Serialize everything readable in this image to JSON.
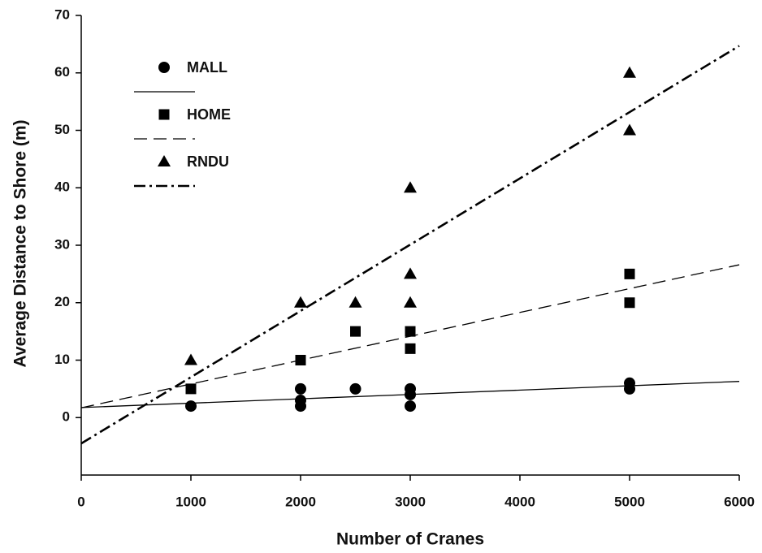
{
  "chart_data": {
    "type": "scatter",
    "x_label": "Number of Cranes",
    "y_label": "Average Distance to Shore (m)",
    "xlim": [
      0,
      6000
    ],
    "xticks": [
      0,
      1000,
      2000,
      3000,
      4000,
      5000,
      6000
    ],
    "ylim": [
      -10,
      70
    ],
    "yticks": [
      0,
      10,
      20,
      30,
      40,
      50,
      60,
      70
    ],
    "grid": false,
    "legend": "upper left",
    "series": [
      {
        "name": "MALL",
        "color": "#000000",
        "marker": "circle",
        "x": [
          1000,
          2000,
          2000,
          2000,
          2500,
          3000,
          3000,
          3000,
          5000,
          5000
        ],
        "values": [
          2,
          5,
          3,
          2,
          5,
          5,
          4,
          2,
          6,
          5
        ],
        "fit": {
          "x": [
            0,
            6000
          ],
          "values": [
            1.75,
            6.3
          ],
          "linestyle": "solid"
        }
      },
      {
        "name": "HOME",
        "color": "#000000",
        "marker": "square",
        "x": [
          1000,
          2000,
          2500,
          3000,
          3000,
          5000,
          5000
        ],
        "values": [
          5,
          10,
          15,
          15,
          12,
          25,
          20
        ],
        "fit": {
          "x": [
            0,
            6000
          ],
          "values": [
            1.7,
            26.6
          ],
          "linestyle": "dashed"
        }
      },
      {
        "name": "RNDU",
        "color": "#000000",
        "marker": "triangle",
        "x": [
          1000,
          2000,
          2500,
          3000,
          3000,
          3000,
          5000,
          5000
        ],
        "values": [
          10,
          20,
          20,
          40,
          25,
          20,
          60,
          50
        ],
        "fit": {
          "x": [
            0,
            6000
          ],
          "values": [
            -4.5,
            64.7
          ],
          "linestyle": "dashdot"
        }
      }
    ]
  }
}
